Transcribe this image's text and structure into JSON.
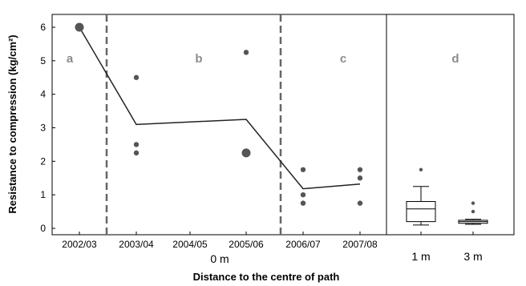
{
  "chart_data": {
    "type": "scatter",
    "xlabel": "Distance to the centre of path",
    "ylabel": "Resistance to compression (kg/cm²)",
    "ylim": [
      0,
      6
    ],
    "yticks": [
      "0",
      "1",
      "2",
      "3",
      "4",
      "5",
      "6"
    ],
    "categories": [
      "2002/03",
      "2003/04",
      "2004/05",
      "2005/06",
      "2006/07",
      "2007/08"
    ],
    "group_label_main": "0 m",
    "panel_labels": [
      "a",
      "b",
      "c",
      "d"
    ],
    "points": [
      {
        "x": "2002/03",
        "y": 6.0,
        "large": true
      },
      {
        "x": "2003/04",
        "y": 4.5
      },
      {
        "x": "2003/04",
        "y": 2.5
      },
      {
        "x": "2003/04",
        "y": 2.25
      },
      {
        "x": "2005/06",
        "y": 5.25
      },
      {
        "x": "2005/06",
        "y": 2.25,
        "large": true
      },
      {
        "x": "2006/07",
        "y": 1.75
      },
      {
        "x": "2006/07",
        "y": 1.0
      },
      {
        "x": "2006/07",
        "y": 0.75
      },
      {
        "x": "2007/08",
        "y": 1.75
      },
      {
        "x": "2007/08",
        "y": 1.5
      },
      {
        "x": "2007/08",
        "y": 0.75
      }
    ],
    "trend_line": {
      "x": [
        "2002/03",
        "2003/04",
        "2005/06",
        "2006/07",
        "2007/08"
      ],
      "y": [
        6.0,
        3.1,
        3.25,
        1.18,
        1.32
      ]
    },
    "boxplots": [
      {
        "label": "1 m",
        "min": 0.1,
        "q1": 0.2,
        "median": 0.58,
        "q3": 0.8,
        "max": 1.25,
        "outliers": [
          1.75
        ]
      },
      {
        "label": "3 m",
        "min": 0.12,
        "q1": 0.15,
        "median": 0.2,
        "q3": 0.24,
        "max": 0.27,
        "outliers": [
          0.5,
          0.75
        ]
      }
    ]
  }
}
